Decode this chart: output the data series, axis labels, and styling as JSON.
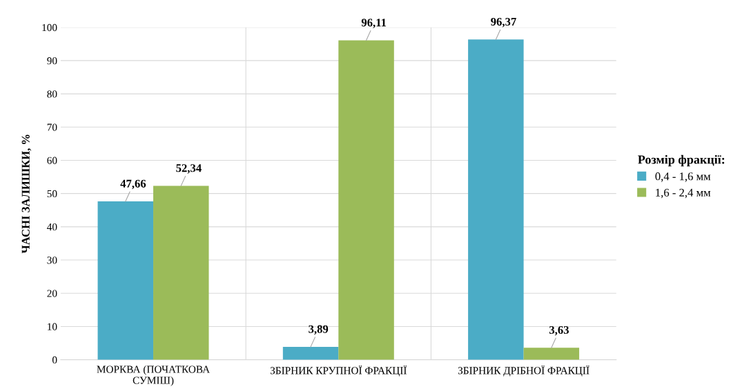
{
  "chart_data": {
    "type": "bar",
    "categories": [
      "МОРКВА (ПОЧАТКОВА\nСУМІШ)",
      "ЗБІРНИК КРУПНОЇ ФРАКЦІЇ",
      "ЗБІРНИК ДРІБНОЇ ФРАКЦІЇ"
    ],
    "series": [
      {
        "name": "0,4 - 1,6 мм",
        "color": "#4bacc6",
        "values": [
          47.66,
          3.89,
          96.37
        ],
        "value_labels": [
          "47,66",
          "3,89",
          "96,37"
        ]
      },
      {
        "name": "1,6 - 2,4 мм",
        "color": "#9bbb59",
        "values": [
          52.34,
          96.11,
          3.63
        ],
        "value_labels": [
          "52,34",
          "96,11",
          "3,63"
        ]
      }
    ],
    "ylabel": "ЧАСНІ ЗАЛИШКИ, %",
    "legend_title": "Розмір фракції:",
    "legend": "right",
    "ylim": [
      0,
      100
    ],
    "yticks": [
      0,
      10,
      20,
      30,
      40,
      50,
      60,
      70,
      80,
      90,
      100
    ],
    "grid": "y"
  }
}
